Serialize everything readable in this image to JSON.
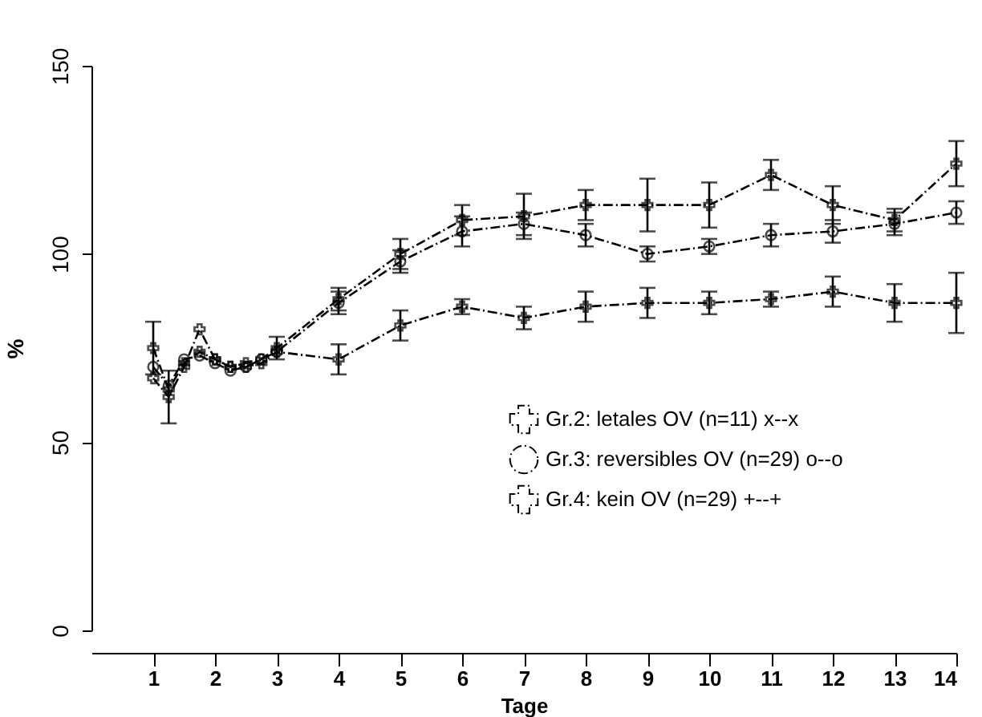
{
  "chart_data": {
    "type": "line",
    "xlabel": "Tage",
    "ylabel": "%",
    "x": [
      1,
      1.25,
      1.5,
      1.75,
      2,
      2.25,
      2.5,
      2.75,
      3,
      4,
      5,
      6,
      7,
      8,
      9,
      10,
      11,
      12,
      13,
      14
    ],
    "xlim": [
      0,
      14
    ],
    "xticks": [
      1,
      2,
      3,
      4,
      5,
      6,
      7,
      8,
      9,
      10,
      11,
      12,
      13,
      14
    ],
    "ylim": [
      0,
      150
    ],
    "yticks": [
      0,
      50,
      100,
      150
    ],
    "grid": false,
    "legend": "bottom right",
    "line_style": "dashed",
    "series": [
      {
        "name": "Gr.2: letales OV (n=11) x--x",
        "color": "#000000",
        "marker": "cross",
        "values": [
          67,
          62,
          70,
          80,
          72,
          70,
          70,
          71,
          74,
          72,
          81,
          86,
          83,
          86,
          87,
          87,
          88,
          90,
          87,
          87
        ],
        "errors": [
          null,
          7,
          null,
          null,
          null,
          null,
          null,
          null,
          null,
          4,
          4,
          2,
          3,
          4,
          4,
          3,
          2,
          4,
          5,
          8
        ]
      },
      {
        "name": "Gr.3: reversibles OV (n=29) o--o",
        "color": "#000000",
        "marker": "circle",
        "values": [
          70,
          65,
          72,
          73,
          71,
          69,
          70,
          72,
          74,
          87,
          98,
          106,
          108,
          105,
          100,
          102,
          105,
          106,
          108,
          111
        ],
        "errors": [
          null,
          null,
          null,
          null,
          null,
          null,
          null,
          null,
          null,
          3,
          3,
          4,
          3,
          3,
          2,
          2,
          3,
          3,
          3,
          3
        ]
      },
      {
        "name": "Gr.4: kein OV (n=29) +--+",
        "color": "#000000",
        "marker": "cross",
        "values": [
          75,
          64,
          71,
          74,
          72,
          70,
          71,
          72,
          75,
          88,
          100,
          109,
          110,
          113,
          113,
          113,
          121,
          113,
          109,
          124
        ],
        "errors": [
          7,
          null,
          null,
          null,
          null,
          null,
          null,
          null,
          3,
          3,
          4,
          4,
          6,
          4,
          7,
          6,
          4,
          5,
          3,
          6
        ]
      }
    ]
  }
}
